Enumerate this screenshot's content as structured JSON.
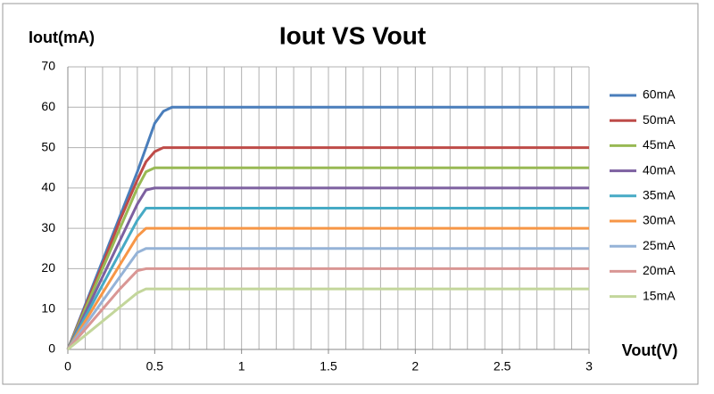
{
  "chart_data": {
    "type": "line",
    "title": "Iout VS Vout",
    "y_label": "Iout(mA)",
    "x_label": "Vout(V)",
    "x": [
      0,
      0.1,
      0.2,
      0.3,
      0.4,
      0.45,
      0.5,
      0.55,
      0.6,
      1,
      1.5,
      2,
      2.5,
      3
    ],
    "series": [
      {
        "name": "60mA",
        "color": "#4a7ebb",
        "values": [
          0,
          11,
          22,
          33,
          44,
          50,
          56,
          59,
          60,
          60,
          60,
          60,
          60,
          60
        ]
      },
      {
        "name": "50mA",
        "color": "#be4b48",
        "values": [
          0,
          10.5,
          21,
          32,
          42,
          46.5,
          49,
          50,
          50,
          50,
          50,
          50,
          50,
          50
        ]
      },
      {
        "name": "45mA",
        "color": "#98b954",
        "values": [
          0,
          10,
          20,
          30,
          40,
          44,
          45,
          45,
          45,
          45,
          45,
          45,
          45,
          45
        ]
      },
      {
        "name": "40mA",
        "color": "#7d60a0",
        "values": [
          0,
          9,
          18,
          27,
          36,
          39.5,
          40,
          40,
          40,
          40,
          40,
          40,
          40,
          40
        ]
      },
      {
        "name": "35mA",
        "color": "#46aac5",
        "values": [
          0,
          8,
          16,
          24,
          32,
          35,
          35,
          35,
          35,
          35,
          35,
          35,
          35,
          35
        ]
      },
      {
        "name": "30mA",
        "color": "#f79646",
        "values": [
          0,
          7,
          14,
          21,
          28,
          30,
          30,
          30,
          30,
          30,
          30,
          30,
          30,
          30
        ]
      },
      {
        "name": "25mA",
        "color": "#95b3d7",
        "values": [
          0,
          6,
          12,
          18,
          24,
          25,
          25,
          25,
          25,
          25,
          25,
          25,
          25,
          25
        ]
      },
      {
        "name": "20mA",
        "color": "#d99694",
        "values": [
          0,
          5,
          10,
          15,
          19.5,
          20,
          20,
          20,
          20,
          20,
          20,
          20,
          20,
          20
        ]
      },
      {
        "name": "15mA",
        "color": "#c3d69b",
        "values": [
          0,
          3.5,
          7,
          10.5,
          14,
          15,
          15,
          15,
          15,
          15,
          15,
          15,
          15,
          15
        ]
      }
    ],
    "xlim": [
      0,
      3
    ],
    "xticks": [
      0,
      0.5,
      1,
      1.5,
      2,
      2.5,
      3
    ],
    "ylim": [
      0,
      70
    ],
    "yticks": [
      0,
      10,
      20,
      30,
      40,
      50,
      60,
      70
    ],
    "grid": true,
    "x_minor_grid": 0.1,
    "legend": "right"
  }
}
